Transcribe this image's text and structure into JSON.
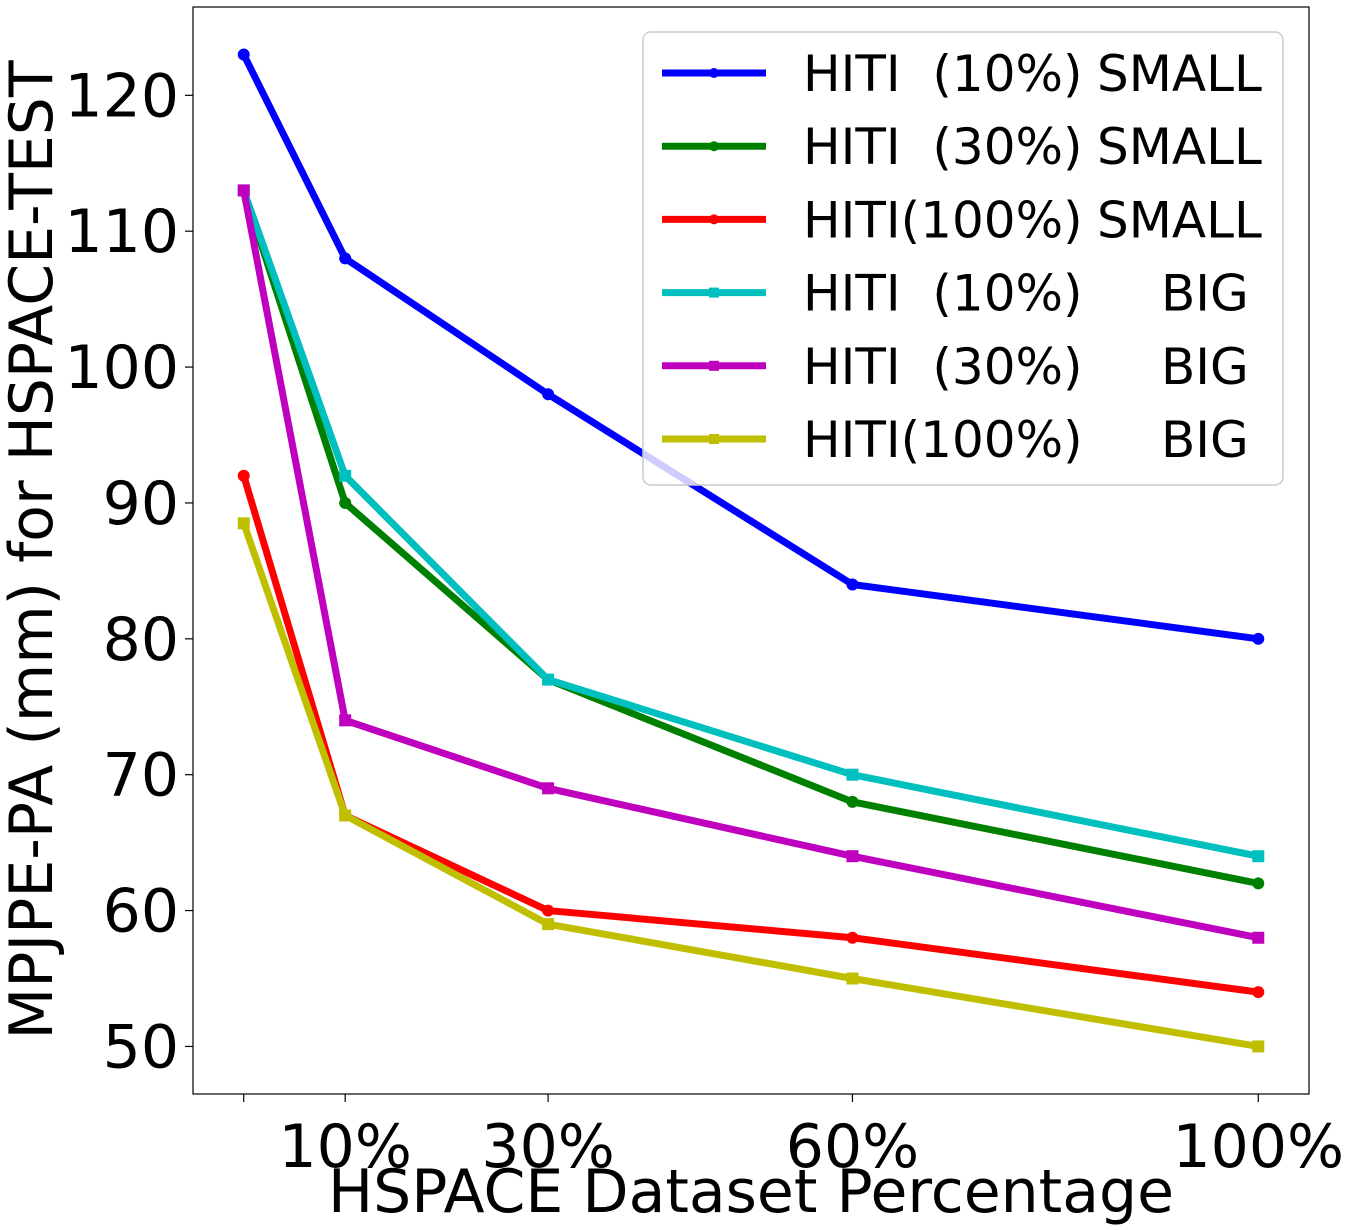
{
  "chart_data": {
    "type": "line",
    "title": "",
    "xlabel": "HSPACE Dataset Percentage",
    "ylabel": "MPJPE-PA (mm) for HSPACE-TEST",
    "x": [
      0,
      10,
      30,
      60,
      100
    ],
    "x_tick_values": [
      0,
      10,
      30,
      60,
      100
    ],
    "x_tick_labels": [
      "",
      "10%",
      "30%",
      "60%",
      "100%"
    ],
    "xlim": [
      -5,
      105
    ],
    "ylim": [
      46.5,
      126.5
    ],
    "y_ticks": [
      50,
      60,
      70,
      80,
      90,
      100,
      110,
      120
    ],
    "grid": false,
    "legend_position": "top-right",
    "series": [
      {
        "name": "HITI  (10%) SMALL",
        "model": "HITI  (10%)",
        "size": "SMALL",
        "color": "#0000ff",
        "marker": "circle",
        "values": [
          123,
          108,
          98,
          84,
          80
        ]
      },
      {
        "name": "HITI  (30%) SMALL",
        "model": "HITI  (30%)",
        "size": "SMALL",
        "color": "#008000",
        "marker": "circle",
        "values": [
          113,
          90,
          77,
          68,
          62
        ]
      },
      {
        "name": "HITI(100%) SMALL",
        "model": "HITI(100%)",
        "size": "SMALL",
        "color": "#ff0000",
        "marker": "circle",
        "values": [
          92,
          67,
          60,
          58,
          54
        ]
      },
      {
        "name": "HITI  (10%)     BIG",
        "model": "HITI  (10%)",
        "size": "BIG",
        "color": "#00bfbf",
        "marker": "square",
        "values": [
          113,
          92,
          77,
          70,
          64
        ]
      },
      {
        "name": "HITI  (30%)     BIG",
        "model": "HITI  (30%)",
        "size": "BIG",
        "color": "#bf00bf",
        "marker": "square",
        "values": [
          113,
          74,
          69,
          64,
          58
        ]
      },
      {
        "name": "HITI(100%)     BIG",
        "model": "HITI(100%)",
        "size": "BIG",
        "color": "#bfbf00",
        "marker": "square",
        "values": [
          88.5,
          67,
          59,
          55,
          50
        ]
      }
    ]
  }
}
